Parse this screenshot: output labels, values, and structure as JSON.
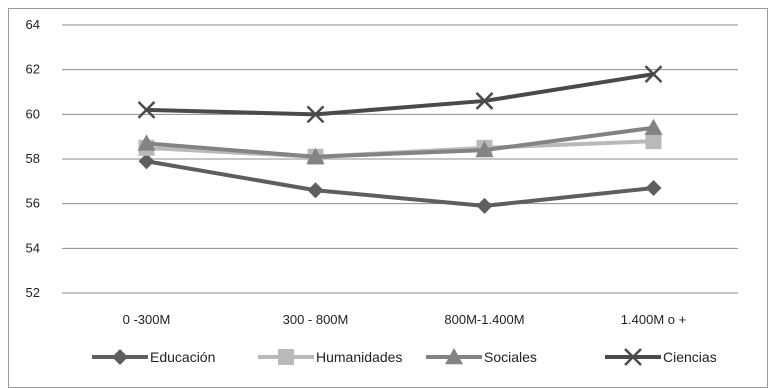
{
  "chart_data": {
    "type": "line",
    "title": "",
    "xlabel": "",
    "ylabel": "",
    "categories": [
      "0 -300M",
      "300 - 800M",
      "800M-1.400M",
      "1.400M o +"
    ],
    "ylim": [
      52,
      64
    ],
    "yticks": [
      52,
      54,
      56,
      58,
      60,
      62,
      64
    ],
    "grid": true,
    "legend_position": "bottom",
    "series": [
      {
        "name": "Educación",
        "values": [
          57.9,
          56.6,
          55.9,
          56.7
        ],
        "color": "#5e5e5e",
        "marker": "diamond"
      },
      {
        "name": "Humanidades",
        "values": [
          58.5,
          58.1,
          58.5,
          58.8
        ],
        "color": "#b9b9b9",
        "marker": "square"
      },
      {
        "name": "Sociales",
        "values": [
          58.7,
          58.1,
          58.4,
          59.4
        ],
        "color": "#838383",
        "marker": "triangle"
      },
      {
        "name": "Ciencias",
        "values": [
          60.2,
          60.0,
          60.6,
          61.8
        ],
        "color": "#4a4a4a",
        "marker": "x"
      }
    ]
  }
}
